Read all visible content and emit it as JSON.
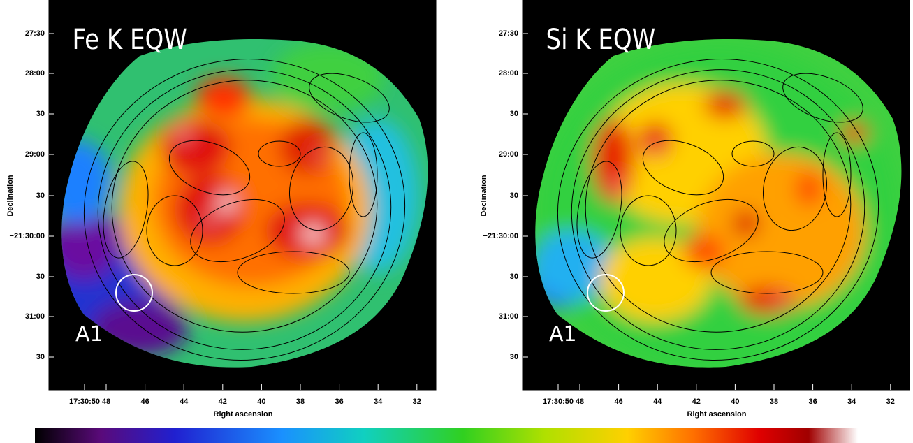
{
  "panels": [
    {
      "title": "Fe K EQW",
      "region_label": "A1",
      "xlabel": "Right ascension",
      "ylabel": "Declination",
      "xticks": [
        "17:30:50",
        "48",
        "46",
        "44",
        "42",
        "40",
        "38",
        "36",
        "34",
        "32"
      ],
      "yticks": [
        "27:30",
        "28:00",
        "30",
        "29:00",
        "30",
        "−21:30:00",
        "30",
        "31:00",
        "30"
      ]
    },
    {
      "title": "Si K EQW",
      "region_label": "A1",
      "xlabel": "Right ascension",
      "ylabel": "Declination",
      "xticks": [
        "17:30:50",
        "48",
        "46",
        "44",
        "42",
        "40",
        "38",
        "36",
        "34",
        "32"
      ],
      "yticks": [
        "27:30",
        "28:00",
        "30",
        "29:00",
        "30",
        "−21:30:00",
        "30",
        "31:00",
        "30"
      ]
    }
  ]
}
